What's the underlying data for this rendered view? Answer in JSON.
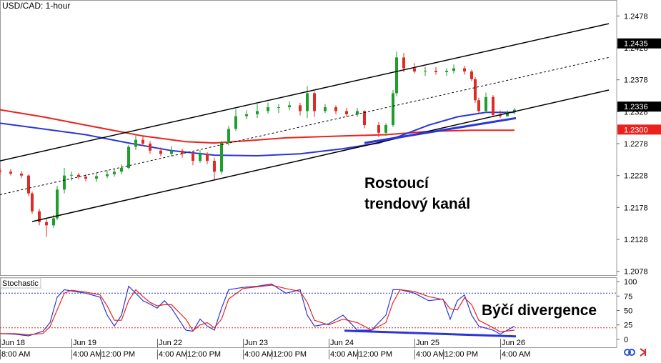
{
  "chart_data": [
    {
      "type": "candlestick",
      "title": "USD/CAD: 1-hour",
      "x": [
        0,
        3,
        6,
        8,
        9,
        11,
        13,
        15,
        16,
        18,
        20,
        22,
        24,
        27,
        30,
        32,
        34,
        36,
        38,
        40,
        42,
        45,
        48,
        51,
        54,
        56,
        58,
        60,
        62,
        64,
        66,
        69,
        72,
        75,
        78,
        81,
        84,
        86,
        88,
        91,
        94,
        97,
        100,
        102,
        106,
        108,
        110,
        111,
        113,
        116,
        119,
        122,
        125,
        127,
        130,
        132,
        133,
        134,
        136,
        138,
        140,
        142,
        144
      ],
      "open": [
        1.2236,
        1.2234,
        1.2231,
        1.2228,
        1.22,
        1.2172,
        1.2155,
        1.215,
        1.2161,
        1.2206,
        1.2228,
        1.2229,
        1.2226,
        1.2223,
        1.2227,
        1.223,
        1.2234,
        1.224,
        1.2273,
        1.2284,
        1.2278,
        1.2267,
        1.2262,
        1.2267,
        1.2262,
        1.2251,
        1.2262,
        1.2251,
        1.2234,
        1.2279,
        1.2301,
        1.2321,
        1.2324,
        1.2329,
        1.2335,
        1.2335,
        1.2338,
        1.2329,
        1.2357,
        1.2329,
        1.2335,
        1.2329,
        1.2324,
        1.2329,
        1.2307,
        1.2295,
        1.2307,
        1.2357,
        1.2413,
        1.2396,
        1.2391,
        1.2392,
        1.239,
        1.2392,
        1.2396,
        1.2391,
        1.2379,
        1.2346,
        1.2329,
        1.2351,
        1.2323,
        1.2321,
        1.2327
      ],
      "high": [
        1.224,
        1.2238,
        1.2235,
        1.223,
        1.2203,
        1.2176,
        1.216,
        1.2166,
        1.2212,
        1.224,
        1.2234,
        1.2232,
        1.223,
        1.2232,
        1.2236,
        1.2238,
        1.2246,
        1.2276,
        1.2292,
        1.229,
        1.2282,
        1.2272,
        1.2274,
        1.227,
        1.2266,
        1.2268,
        1.2265,
        1.2256,
        1.2282,
        1.2306,
        1.2332,
        1.233,
        1.234,
        1.2342,
        1.234,
        1.2344,
        1.2342,
        1.2368,
        1.236,
        1.234,
        1.2338,
        1.2334,
        1.2334,
        1.233,
        1.2312,
        1.231,
        1.2362,
        1.2422,
        1.242,
        1.2404,
        1.2398,
        1.2398,
        1.2396,
        1.2402,
        1.24,
        1.2394,
        1.2382,
        1.235,
        1.2358,
        1.2354,
        1.233,
        1.233,
        1.2334
      ],
      "low": [
        1.223,
        1.2228,
        1.2224,
        1.2196,
        1.2168,
        1.215,
        1.2132,
        1.2146,
        1.2158,
        1.22,
        1.222,
        1.2222,
        1.2219,
        1.2218,
        1.2224,
        1.2226,
        1.223,
        1.2238,
        1.2268,
        1.2274,
        1.2262,
        1.2258,
        1.2258,
        1.2256,
        1.2244,
        1.2248,
        1.2246,
        1.2222,
        1.223,
        1.2275,
        1.2298,
        1.2316,
        1.2318,
        1.2325,
        1.2326,
        1.233,
        1.2322,
        1.2318,
        1.232,
        1.2326,
        1.2324,
        1.232,
        1.232,
        1.2302,
        1.2288,
        1.229,
        1.2304,
        1.2352,
        1.239,
        1.2388,
        1.2384,
        1.2386,
        1.2384,
        1.2388,
        1.2386,
        1.2376,
        1.2342,
        1.2326,
        1.2326,
        1.232,
        1.2318,
        1.232,
        1.2324
      ],
      "close": [
        1.2234,
        1.2231,
        1.2228,
        1.22,
        1.2172,
        1.2155,
        1.215,
        1.2161,
        1.2206,
        1.2228,
        1.2229,
        1.2226,
        1.2223,
        1.2227,
        1.223,
        1.2234,
        1.224,
        1.2273,
        1.2284,
        1.2278,
        1.2267,
        1.2262,
        1.2267,
        1.2262,
        1.2251,
        1.2262,
        1.2251,
        1.2234,
        1.2279,
        1.2301,
        1.2321,
        1.2324,
        1.2329,
        1.2335,
        1.2335,
        1.2338,
        1.2329,
        1.2357,
        1.2329,
        1.2335,
        1.2329,
        1.2324,
        1.2329,
        1.2307,
        1.2295,
        1.2307,
        1.2357,
        1.2413,
        1.2396,
        1.2391,
        1.2392,
        1.239,
        1.2392,
        1.2396,
        1.2391,
        1.2379,
        1.2346,
        1.2329,
        1.2351,
        1.2323,
        1.2321,
        1.2327,
        1.2331
      ],
      "up_color": "#1e9e2a",
      "down_color": "#e02a24",
      "xlim": [
        0,
        172.6
      ],
      "ylim": [
        1.2072,
        1.2503
      ],
      "yticks": [
        1.2478,
        1.2428,
        1.2378,
        1.2328,
        1.2278,
        1.2228,
        1.2178,
        1.2128,
        1.2078
      ],
      "overlays": [
        {
          "color": "#e8231f",
          "x": [
            0,
            12,
            24,
            40,
            52,
            60,
            68,
            80,
            96,
            108,
            120,
            132,
            144
          ],
          "values": [
            1.2331,
            1.232,
            1.2307,
            1.229,
            1.2281,
            1.2279,
            1.2282,
            1.2287,
            1.229,
            1.2292,
            1.2297,
            1.2299,
            1.2299
          ]
        },
        {
          "color": "#2a36d6",
          "x": [
            0,
            12,
            24,
            36,
            48,
            60,
            72,
            84,
            96,
            106,
            112,
            120,
            128,
            136,
            144
          ],
          "values": [
            1.231,
            1.2301,
            1.2292,
            1.2279,
            1.2267,
            1.226,
            1.2259,
            1.2262,
            1.227,
            1.2279,
            1.229,
            1.2307,
            1.232,
            1.2327,
            1.2327
          ]
        }
      ],
      "channel": [
        {
          "color": "#000000",
          "dashed": false,
          "x": [
            0,
            170.4
          ],
          "values": [
            1.2251,
            1.2466
          ]
        },
        {
          "color": "#000000",
          "dashed": true,
          "x": [
            0,
            170.4
          ],
          "values": [
            1.2198,
            1.2413
          ]
        },
        {
          "color": "#000000",
          "dashed": false,
          "x": [
            9,
            170.4
          ],
          "values": [
            1.2156,
            1.2362
          ]
        },
        {
          "color": "#2a36d6",
          "dashed": false,
          "x": [
            102,
            144.4
          ],
          "values": [
            1.2279,
            1.2318
          ]
        }
      ],
      "price_tags": [
        {
          "value": 1.2435,
          "color": "#000000"
        },
        {
          "value": 1.2336,
          "color": "#000000"
        },
        {
          "value": 1.23,
          "label": "1.2300",
          "color": "#e8231f"
        }
      ],
      "annotation": [
        "Rostoucí",
        "trendový kanál"
      ],
      "date_ticks": [
        {
          "value": 0,
          "label": "Jun 18"
        },
        {
          "value": 20,
          "label": "Jun 19"
        },
        {
          "value": 44,
          "label": "Jun 22"
        },
        {
          "value": 68,
          "label": "Jun 23"
        },
        {
          "value": 92,
          "label": "Jun 24"
        },
        {
          "value": 116,
          "label": "Jun 25"
        },
        {
          "value": 140,
          "label": "Jun 26"
        }
      ],
      "xticks": [
        {
          "value": 0,
          "label": "8:00 AM"
        },
        {
          "value": 20,
          "label": "4:00 AM"
        },
        {
          "value": 28,
          "label": "12:00 PM"
        },
        {
          "value": 44,
          "label": "4:00 AM"
        },
        {
          "value": 52,
          "label": "12:00 PM"
        },
        {
          "value": 68,
          "label": "4:00 AM"
        },
        {
          "value": 76,
          "label": "12:00 PM"
        },
        {
          "value": 92,
          "label": "4:00 AM"
        },
        {
          "value": 100,
          "label": "12:00 PM"
        },
        {
          "value": 116,
          "label": "4:00 AM"
        },
        {
          "value": 124,
          "label": "12:00 PM"
        },
        {
          "value": 140,
          "label": "4:00 AM"
        }
      ]
    },
    {
      "type": "line",
      "title": "Stochastic",
      "x": [
        0,
        4,
        8,
        12,
        14,
        16,
        18,
        20,
        24,
        28,
        30,
        32,
        34,
        36,
        38,
        40,
        42,
        44,
        46,
        48,
        52,
        54,
        56,
        58,
        60,
        62,
        64,
        68,
        72,
        76,
        80,
        84,
        86,
        88,
        92,
        96,
        100,
        104,
        108,
        110,
        112,
        116,
        120,
        124,
        126,
        128,
        130,
        132,
        134,
        138,
        140,
        144
      ],
      "series": [
        {
          "color": "#2a36d6",
          "values": [
            10,
            9,
            6,
            14,
            29,
            73,
            86,
            84,
            80,
            73,
            42,
            23,
            42,
            92,
            80,
            67,
            61,
            54,
            67,
            54,
            16,
            14,
            35,
            23,
            16,
            54,
            86,
            90,
            92,
            96,
            80,
            86,
            42,
            23,
            27,
            42,
            16,
            16,
            42,
            86,
            86,
            80,
            67,
            70,
            35,
            67,
            77,
            42,
            23,
            16,
            9,
            23
          ]
        },
        {
          "color": "#e8231f",
          "values": [
            10,
            10,
            8,
            10,
            22,
            51,
            80,
            85,
            82,
            77,
            58,
            33,
            33,
            67,
            86,
            74,
            64,
            58,
            60,
            60,
            35,
            15,
            25,
            29,
            20,
            35,
            70,
            88,
            91,
            94,
            88,
            83,
            64,
            33,
            25,
            35,
            29,
            16,
            29,
            64,
            86,
            83,
            74,
            69,
            53,
            51,
            72,
            60,
            33,
            20,
            13,
            16
          ]
        }
      ],
      "xlim": [
        0,
        172.6
      ],
      "ylim": [
        -15,
        107.6
      ],
      "yticks": [
        100,
        75,
        50,
        25,
        0
      ],
      "levels": [
        {
          "value": 80,
          "color": "#2a36d6"
        },
        {
          "value": 20,
          "color": "#e8231f"
        }
      ],
      "trendline": {
        "color": "#2a36d6",
        "x": [
          96.4,
          144.4
        ],
        "values": [
          15,
          5
        ]
      },
      "annotation": "Býčí divergence"
    }
  ]
}
